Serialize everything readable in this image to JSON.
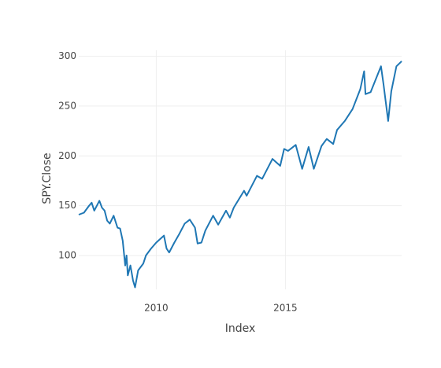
{
  "chart_data": {
    "type": "line",
    "xlabel": "Index",
    "ylabel": "SPY.Close",
    "x": [
      2007.0,
      2007.2,
      2007.4,
      2007.5,
      2007.6,
      2007.8,
      2007.9,
      2008.0,
      2008.1,
      2008.2,
      2008.35,
      2008.5,
      2008.6,
      2008.7,
      2008.8,
      2008.85,
      2008.9,
      2009.0,
      2009.1,
      2009.18,
      2009.3,
      2009.5,
      2009.6,
      2009.8,
      2010.0,
      2010.3,
      2010.4,
      2010.5,
      2010.7,
      2010.9,
      2011.1,
      2011.3,
      2011.5,
      2011.6,
      2011.75,
      2011.9,
      2012.2,
      2012.4,
      2012.7,
      2012.85,
      2013.0,
      2013.4,
      2013.5,
      2013.9,
      2014.1,
      2014.5,
      2014.8,
      2014.95,
      2015.1,
      2015.4,
      2015.65,
      2015.9,
      2016.1,
      2016.4,
      2016.6,
      2016.85,
      2017.0,
      2017.3,
      2017.6,
      2017.9,
      2018.05,
      2018.1,
      2018.3,
      2018.7,
      2018.8,
      2018.98,
      2019.1,
      2019.3,
      2019.5
    ],
    "series": [
      {
        "name": "SPY.Close",
        "color": "#1f77b4",
        "values": [
          141,
          143,
          150,
          153,
          145,
          155,
          148,
          145,
          135,
          132,
          140,
          128,
          127,
          115,
          90,
          100,
          80,
          90,
          75,
          68,
          85,
          92,
          100,
          107,
          113,
          120,
          107,
          103,
          113,
          122,
          132,
          136,
          128,
          112,
          113,
          125,
          140,
          131,
          145,
          138,
          148,
          165,
          160,
          180,
          177,
          197,
          190,
          207,
          205,
          211,
          187,
          209,
          187,
          210,
          217,
          212,
          226,
          235,
          247,
          267,
          285,
          262,
          264,
          290,
          272,
          235,
          265,
          290,
          295
        ]
      }
    ],
    "xlim": [
      2007.0,
      2019.5
    ],
    "xticks": [
      2010,
      2015
    ],
    "ylim": [
      66,
      306
    ],
    "yticks": [
      100,
      150,
      200,
      250,
      300
    ],
    "grid": true
  }
}
